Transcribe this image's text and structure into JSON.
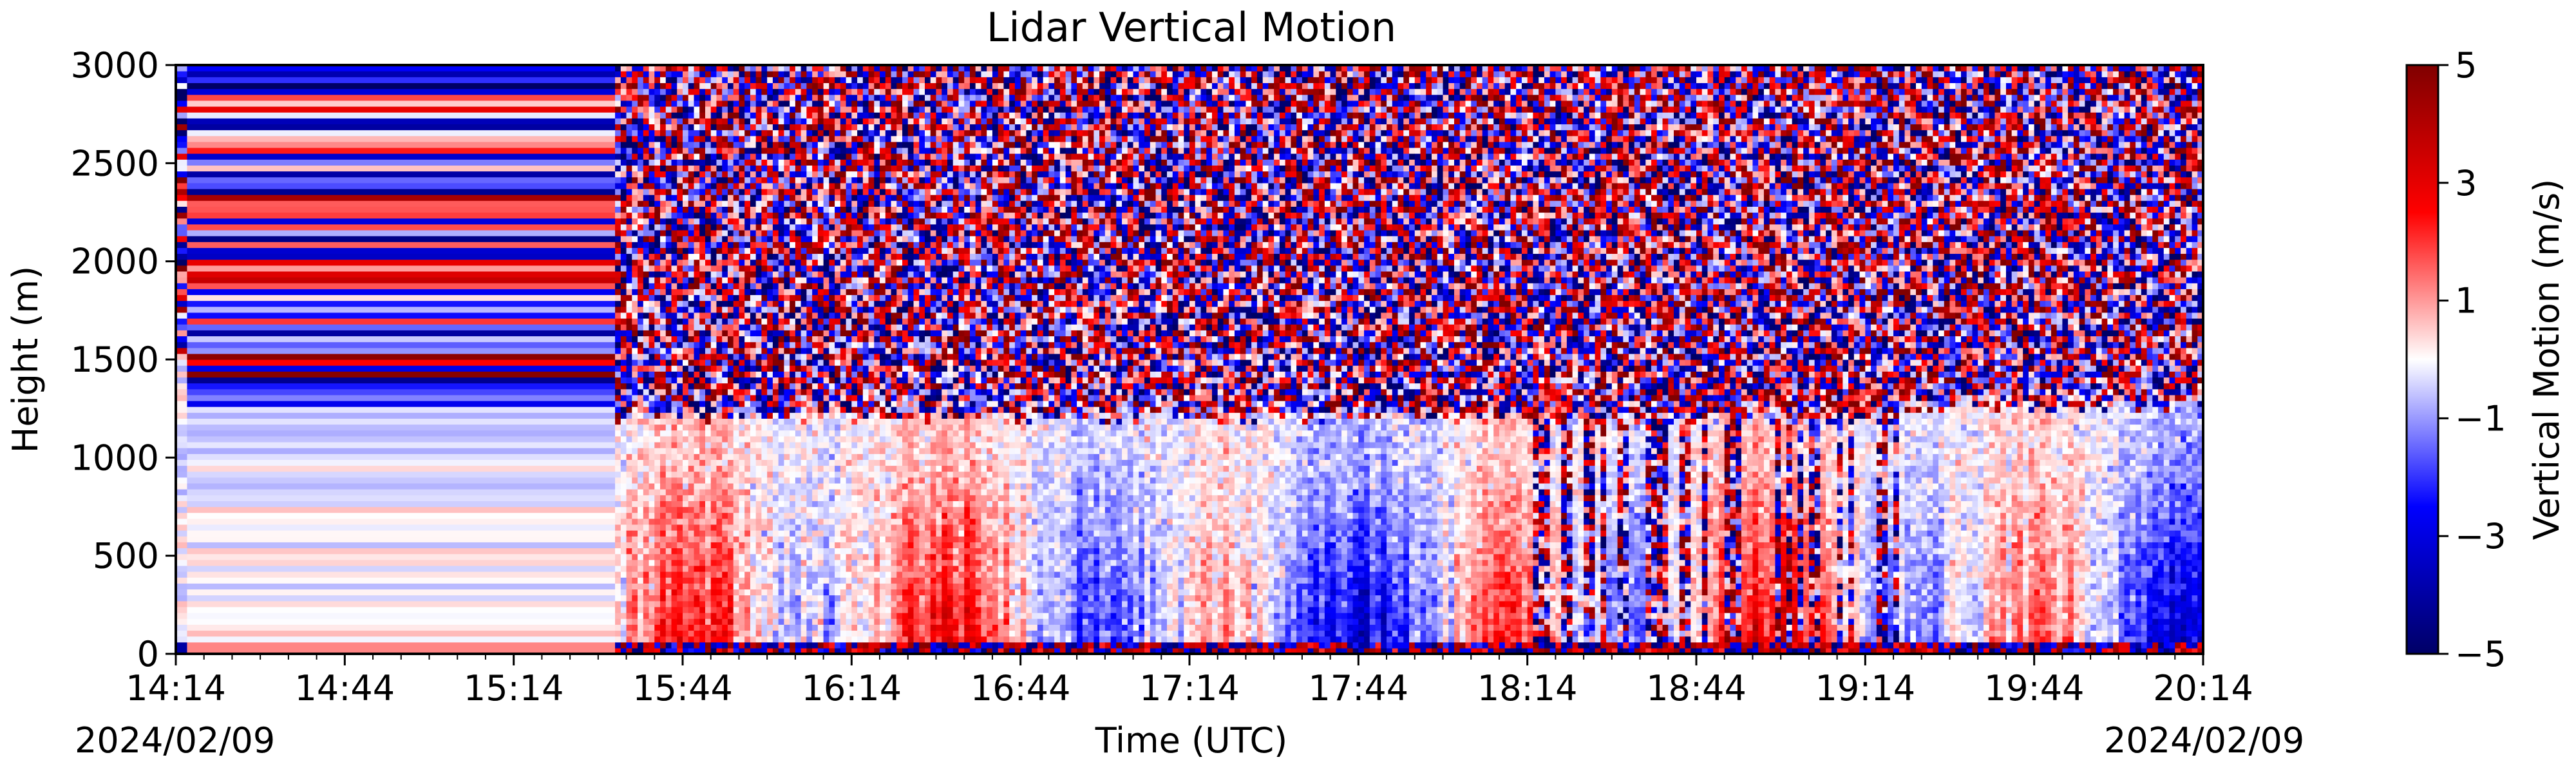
{
  "chart_data": {
    "type": "heatmap",
    "title": "Lidar Vertical Motion",
    "xlabel": "Time (UTC)",
    "ylabel": "Height (m)",
    "x_range": [
      "14:14",
      "20:14"
    ],
    "xlim_minutes_of_day": [
      854,
      1214
    ],
    "x_tick_labels": [
      "14:14",
      "14:44",
      "15:14",
      "15:44",
      "16:14",
      "16:44",
      "17:14",
      "17:44",
      "18:14",
      "18:44",
      "19:14",
      "19:44",
      "20:14"
    ],
    "date_start": "2024/02/09",
    "date_end": "2024/02/09",
    "ylim": [
      0,
      3000
    ],
    "y_ticks": [
      0,
      500,
      1000,
      1500,
      2000,
      2500,
      3000
    ],
    "colorbar": {
      "label": "Vertical Motion (m/s)",
      "range": [
        -5,
        5
      ],
      "ticks": [
        -5,
        -3,
        -1,
        1,
        3,
        5
      ],
      "tick_labels": [
        "−5",
        "−3",
        "−1",
        "1",
        "3",
        "5"
      ],
      "colormap": [
        "#000066",
        "#0000ff",
        "#ffffff",
        "#ff0000",
        "#800000"
      ]
    },
    "segments": [
      {
        "start": "14:14",
        "end": "14:16",
        "note": "noise above 1500 m"
      },
      {
        "start": "14:16",
        "end": "15:32",
        "note": "horizontal banding, noise above 1200 m"
      },
      {
        "start": "15:32",
        "end": "18:18",
        "boundary_layer_top_m": 1200
      },
      {
        "start": "18:18",
        "end": "19:20",
        "note": "alternating noisy and valid columns"
      },
      {
        "start": "19:20",
        "end": "20:14",
        "boundary_layer_top_m": 1250
      }
    ],
    "grid": false
  }
}
